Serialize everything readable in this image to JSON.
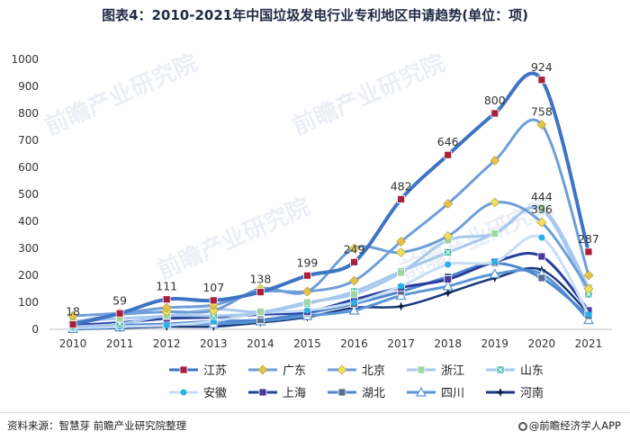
{
  "title": "图表4：2010-2021年中国垃圾发电行业专利地区申请趋势(单位：项)",
  "footer": {
    "source": "资料来源：智慧芽 前瞻产业研究院整理",
    "brand": "@前瞻经济学人APP"
  },
  "watermark": "前瞻产业研究院",
  "chart_data": {
    "type": "line",
    "x": [
      "2010",
      "2011",
      "2012",
      "2013",
      "2014",
      "2015",
      "2016",
      "2017",
      "2018",
      "2019",
      "2020",
      "2021"
    ],
    "ylim": [
      0,
      1000
    ],
    "yticks": [
      "0",
      "100",
      "200",
      "300",
      "400",
      "500",
      "600",
      "700",
      "800",
      "900",
      "1000"
    ],
    "grid": false,
    "legend_position": "bottom",
    "series": [
      {
        "name": "江苏",
        "color": "#3e74c4",
        "marker": "square",
        "marker_color": "#a8203a",
        "width": 4,
        "values": [
          18,
          59,
          111,
          107,
          138,
          199,
          249,
          482,
          646,
          800,
          924,
          287
        ],
        "labels": [
          "18",
          "59",
          "111",
          "107",
          "138",
          "199",
          "249",
          "482",
          "646",
          "800",
          "924",
          "287"
        ]
      },
      {
        "name": "广东",
        "color": "#6e9ed9",
        "marker": "diamond",
        "marker_color": "#e2c44a",
        "width": 3,
        "values": [
          50,
          60,
          80,
          90,
          140,
          140,
          180,
          325,
          465,
          625,
          758,
          200
        ],
        "labels": [
          "",
          "",
          "",
          "",
          "",
          "",
          "",
          "",
          "",
          "",
          "758",
          ""
        ]
      },
      {
        "name": "北京",
        "color": "#6e9ed9",
        "marker": "diamond",
        "marker_color": "#efe060",
        "width": 3,
        "values": [
          25,
          55,
          65,
          70,
          150,
          140,
          300,
          285,
          345,
          470,
          396,
          150
        ],
        "labels": [
          "",
          "",
          "",
          "",
          "",
          "",
          "",
          "",
          "",
          "",
          "396",
          ""
        ]
      },
      {
        "name": "浙江",
        "color": "#a7c9ee",
        "marker": "square",
        "marker_color": "#9fd6a3",
        "width": 3,
        "values": [
          30,
          40,
          50,
          75,
          65,
          100,
          130,
          210,
          330,
          355,
          450,
          155
        ],
        "labels": [
          "",
          "",
          "",
          "",
          "",
          "",
          "",
          "",
          "",
          "",
          "",
          ""
        ]
      },
      {
        "name": "山东",
        "color": "#a7c9ee",
        "marker": "square-x",
        "marker_color": "#36b7a0",
        "width": 3,
        "values": [
          10,
          20,
          50,
          50,
          60,
          95,
          140,
          215,
          285,
          355,
          444,
          130
        ],
        "labels": [
          "",
          "",
          "",
          "",
          "",
          "",
          "",
          "",
          "",
          "",
          "444",
          ""
        ]
      },
      {
        "name": "安徽",
        "color": "#c6ddf5",
        "marker": "circle",
        "marker_color": "#25b2e6",
        "width": 3,
        "values": [
          5,
          10,
          15,
          30,
          60,
          70,
          100,
          160,
          240,
          250,
          340,
          55
        ],
        "labels": [
          "",
          "",
          "",
          "",
          "",
          "",
          "",
          "",
          "",
          "",
          "",
          ""
        ]
      },
      {
        "name": "上海",
        "color": "#2a3f9c",
        "marker": "square",
        "marker_color": "#4a3a9e",
        "width": 3,
        "values": [
          15,
          25,
          40,
          45,
          55,
          65,
          110,
          155,
          185,
          250,
          270,
          70
        ],
        "labels": [
          "",
          "",
          "",
          "",
          "",
          "",
          "",
          "",
          "",
          "",
          "",
          ""
        ]
      },
      {
        "name": "湖北",
        "color": "#4d87cf",
        "marker": "square",
        "marker_color": "#5a6e8f",
        "width": 3,
        "values": [
          10,
          15,
          20,
          30,
          35,
          60,
          95,
          140,
          195,
          245,
          190,
          50
        ],
        "labels": [
          "",
          "",
          "",
          "",
          "",
          "",
          "",
          "",
          "",
          "",
          "",
          ""
        ]
      },
      {
        "name": "四川",
        "color": "#5a95d6",
        "marker": "triangle",
        "marker_color": "#ffffff",
        "width": 3,
        "values": [
          2,
          8,
          20,
          20,
          30,
          50,
          70,
          125,
          160,
          205,
          205,
          35
        ],
        "labels": [
          "",
          "",
          "",
          "",
          "",
          "",
          "",
          "",
          "",
          "",
          "",
          ""
        ]
      },
      {
        "name": "河南",
        "color": "#1a3a7a",
        "marker": "star",
        "marker_color": "#0e1d3d",
        "width": 2.5,
        "values": [
          0,
          5,
          10,
          10,
          25,
          45,
          80,
          85,
          135,
          190,
          220,
          60
        ],
        "labels": [
          "",
          "",
          "",
          "",
          "",
          "",
          "",
          "",
          "",
          "",
          "",
          ""
        ]
      }
    ]
  }
}
